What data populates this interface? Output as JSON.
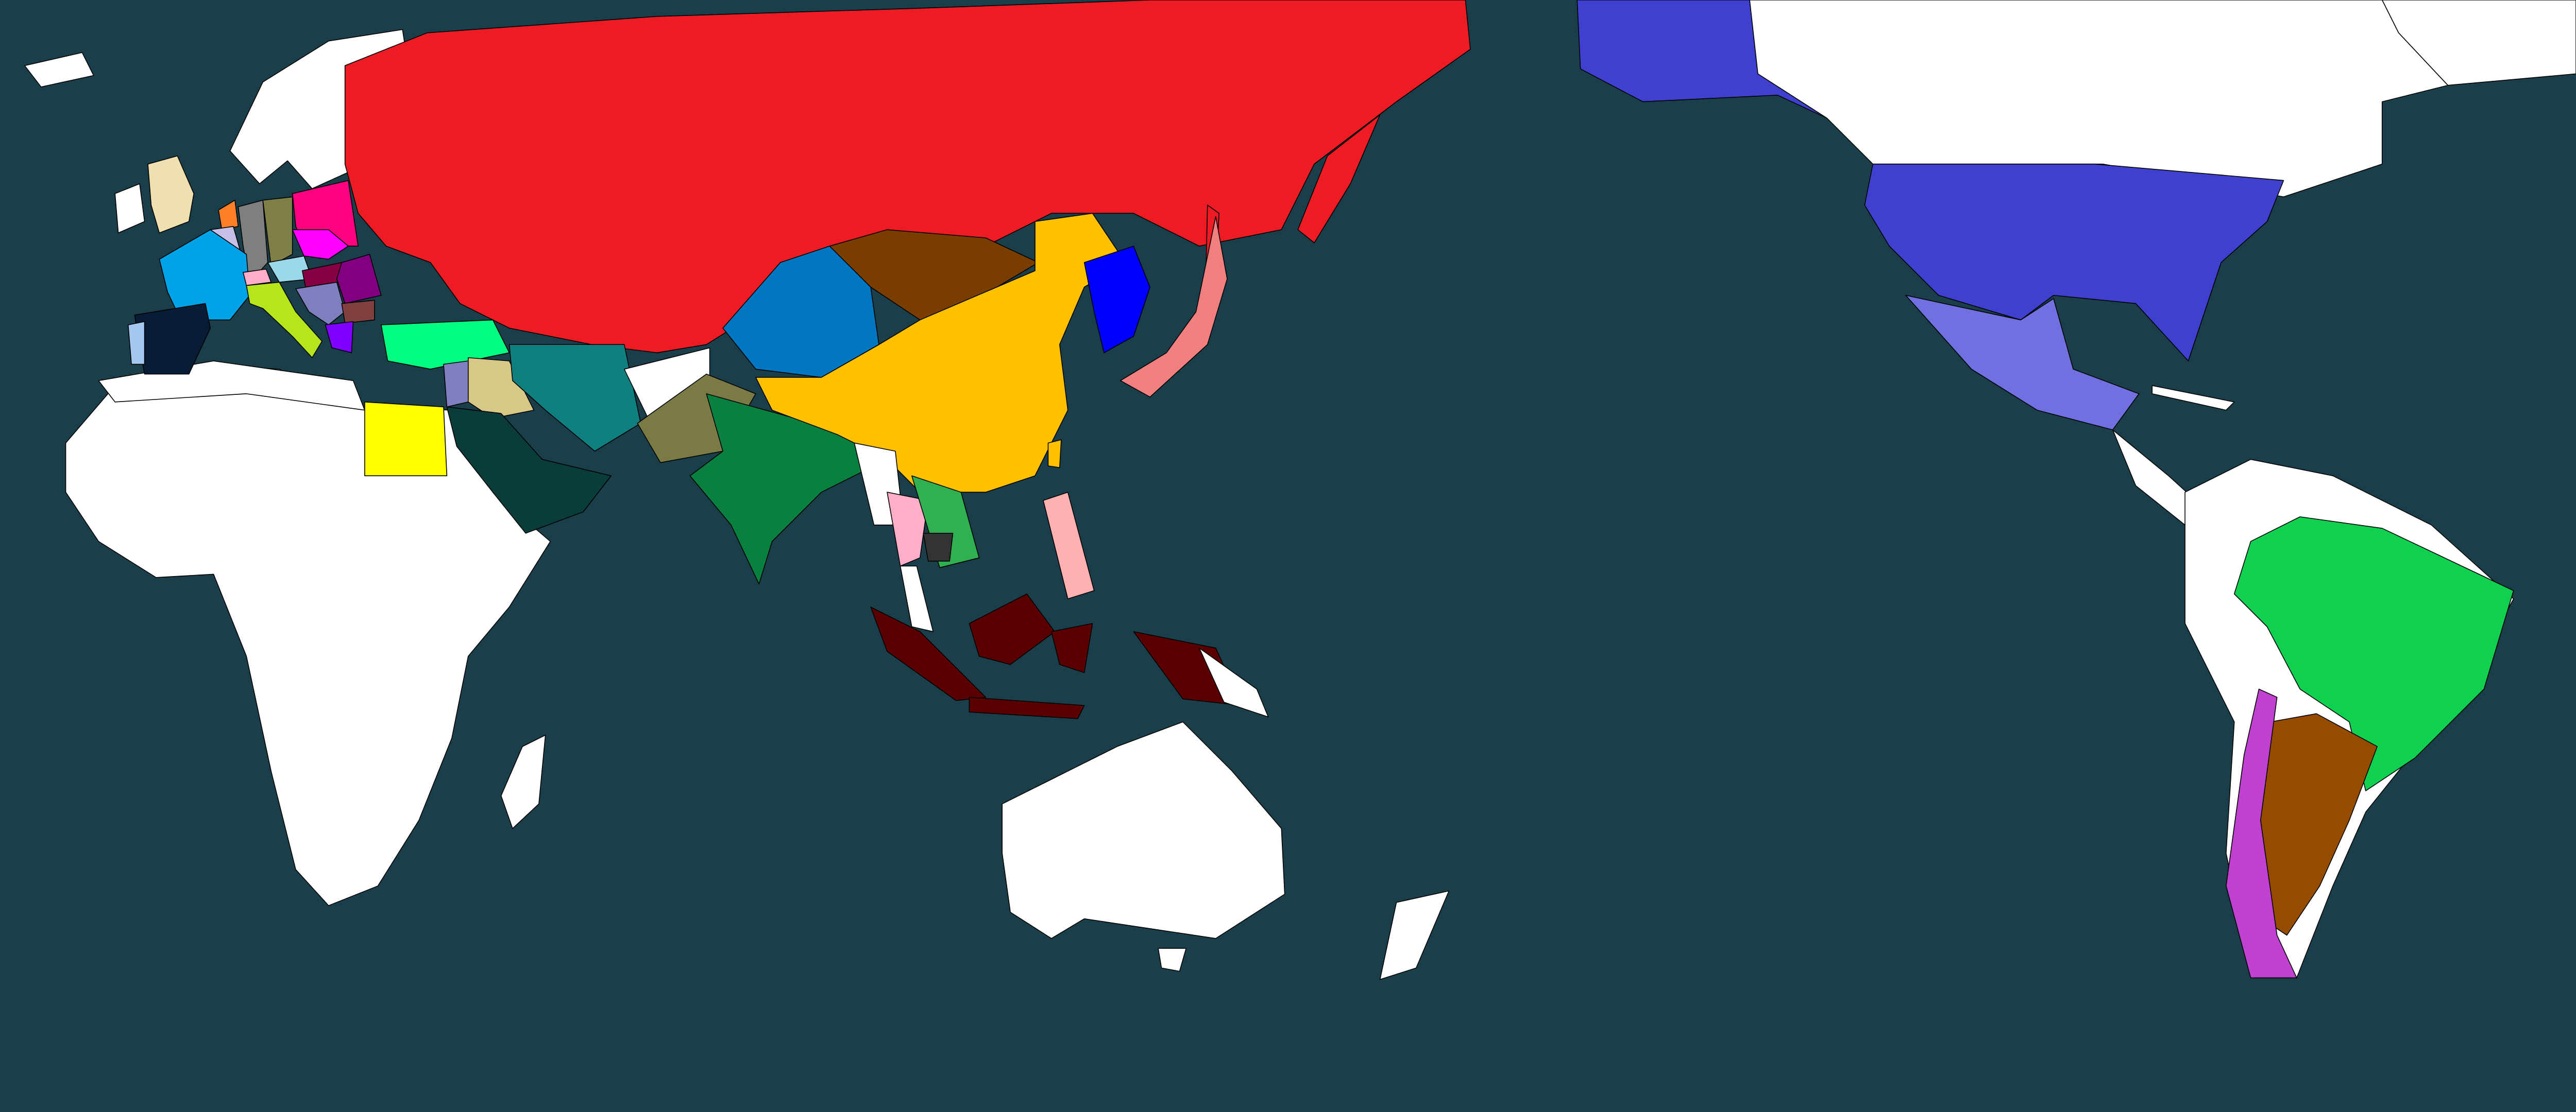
{
  "map": {
    "ocean_color": "#1a3f4b",
    "unclaimed_color": "#ffffff",
    "border_color": "#000000",
    "regions": {
      "russia": "#ed1c24",
      "united-kingdom": "#efe0b0",
      "ireland": "#ffffff",
      "netherlands": "#ff7f27",
      "belgium": "#c8bfe7",
      "germany-west": "#7f7f7f",
      "germany-east": "#7f7f48",
      "poland": "#ff0080",
      "czechia": "#ff00ff",
      "austria": "#99d9ea",
      "switzerland": "#ffaec9",
      "france": "#00a2e8",
      "spain": "#081c36",
      "portugal": "#a5c8f0",
      "italy": "#b5e61d",
      "hungary": "#880044",
      "romania": "#800080",
      "yugoslavia": "#7f7fbf",
      "bulgaria": "#804040",
      "greece": "#8000ff",
      "turkey": "#00ff80",
      "levant": "#8080c0",
      "iraq": "#d8c888",
      "egypt": "#ffff00",
      "saudi-arabia": "#0a3d3a",
      "persia": "#107f7f",
      "pakistan": "#7a7a45",
      "india": "#0a8040",
      "central-asia": "#0077c0",
      "mongolia": "#7a3d00",
      "china": "#ffc000",
      "korea": "#0000ff",
      "japan": "#f08080",
      "thailand": "#ffaec9",
      "vietnam": "#30b050",
      "cambodia": "#333333",
      "philippines": "#ffb0b0",
      "indonesia": "#5a0000",
      "usa": "#4040d0",
      "mexico": "#7070e0",
      "brazil": "#10d050",
      "argentina": "#954b00",
      "chile": "#c040d0"
    }
  }
}
